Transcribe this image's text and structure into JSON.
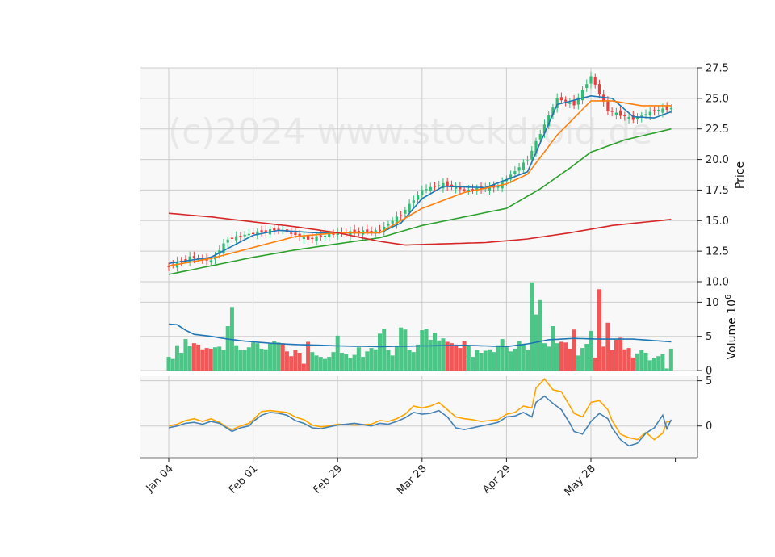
{
  "watermark": "(c)2024 www.stockdroid.de",
  "colors": {
    "up": "#2ebd72",
    "down": "#f23a3a",
    "ma1": "#1f77b4",
    "ma2": "#ff7f0e",
    "ma3": "#2ca02c",
    "ma4": "#d62728",
    "vol_ma": "#1f77b4",
    "osc1": "#4682b4",
    "osc2": "#ffa500",
    "panel_bg": "#f8f8f8",
    "grid": "#cccccc"
  },
  "chart_data": {
    "type": "candlestick",
    "x_tick_labels": [
      "Jan 04",
      "Feb 01",
      "Feb 29",
      "Mar 28",
      "Apr 29",
      "May 28"
    ],
    "x_tick_index": [
      0,
      20,
      40,
      60,
      80,
      100
    ],
    "n_bars": 120,
    "price_panel": {
      "ylabel": "Price",
      "ylim": [
        10.0,
        27.5
      ],
      "yticks": [
        "10.0",
        "12.5",
        "15.0",
        "17.5",
        "20.0",
        "22.5",
        "25.0",
        "27.5"
      ],
      "ytick_values": [
        10.0,
        12.5,
        15.0,
        17.5,
        20.0,
        22.5,
        25.0,
        27.5
      ],
      "close_anchors": [
        [
          0,
          11.3
        ],
        [
          5,
          12.0
        ],
        [
          10,
          11.7
        ],
        [
          14,
          13.5
        ],
        [
          20,
          14.0
        ],
        [
          26,
          14.3
        ],
        [
          33,
          13.5
        ],
        [
          40,
          14.0
        ],
        [
          50,
          14.2
        ],
        [
          55,
          15.5
        ],
        [
          60,
          17.5
        ],
        [
          65,
          18.0
        ],
        [
          70,
          17.5
        ],
        [
          78,
          17.8
        ],
        [
          85,
          20.0
        ],
        [
          92,
          25.0
        ],
        [
          96,
          24.5
        ],
        [
          100,
          26.8
        ],
        [
          104,
          24.0
        ],
        [
          110,
          23.3
        ],
        [
          115,
          24.0
        ],
        [
          119,
          24.2
        ]
      ],
      "ma_anchors": {
        "ma1": [
          [
            0,
            11.5
          ],
          [
            10,
            12.0
          ],
          [
            20,
            13.8
          ],
          [
            26,
            14.2
          ],
          [
            35,
            14.0
          ],
          [
            50,
            14.0
          ],
          [
            55,
            14.8
          ],
          [
            60,
            16.8
          ],
          [
            65,
            17.8
          ],
          [
            75,
            17.7
          ],
          [
            85,
            19.0
          ],
          [
            92,
            24.5
          ],
          [
            100,
            25.2
          ],
          [
            105,
            25.0
          ],
          [
            110,
            23.5
          ],
          [
            115,
            23.4
          ],
          [
            119,
            23.9
          ]
        ],
        "ma2": [
          [
            0,
            11.3
          ],
          [
            10,
            11.9
          ],
          [
            20,
            12.8
          ],
          [
            30,
            13.7
          ],
          [
            40,
            14.0
          ],
          [
            50,
            14.0
          ],
          [
            60,
            16.0
          ],
          [
            70,
            17.3
          ],
          [
            80,
            18.0
          ],
          [
            85,
            18.8
          ],
          [
            92,
            22.0
          ],
          [
            100,
            24.8
          ],
          [
            105,
            24.8
          ],
          [
            112,
            24.4
          ],
          [
            119,
            24.4
          ]
        ],
        "ma3": [
          [
            0,
            10.6
          ],
          [
            10,
            11.3
          ],
          [
            20,
            12.0
          ],
          [
            30,
            12.6
          ],
          [
            40,
            13.1
          ],
          [
            50,
            13.6
          ],
          [
            60,
            14.6
          ],
          [
            70,
            15.3
          ],
          [
            80,
            16.0
          ],
          [
            88,
            17.6
          ],
          [
            95,
            19.3
          ],
          [
            100,
            20.6
          ],
          [
            108,
            21.6
          ],
          [
            119,
            22.5
          ]
        ],
        "ma4": [
          [
            0,
            15.6
          ],
          [
            10,
            15.3
          ],
          [
            20,
            14.9
          ],
          [
            30,
            14.5
          ],
          [
            40,
            14.0
          ],
          [
            50,
            13.3
          ],
          [
            56,
            13.0
          ],
          [
            65,
            13.1
          ],
          [
            75,
            13.2
          ],
          [
            85,
            13.5
          ],
          [
            95,
            14.0
          ],
          [
            105,
            14.6
          ],
          [
            119,
            15.1
          ]
        ]
      }
    },
    "volume_panel": {
      "ylabel": "Volume  10^6",
      "ylim": [
        0,
        13
      ],
      "yticks": [
        "0",
        "5",
        "10"
      ],
      "ytick_values": [
        0,
        5,
        10
      ],
      "volumes": [
        2.0,
        1.7,
        3.7,
        2.6,
        4.6,
        3.6,
        4.0,
        3.8,
        3.1,
        3.3,
        3.2,
        3.4,
        3.5,
        3.0,
        6.5,
        9.3,
        3.7,
        3.0,
        3.0,
        3.4,
        4.1,
        4.0,
        3.2,
        3.1,
        3.9,
        4.3,
        4.1,
        4.0,
        2.8,
        2.1,
        3.0,
        2.6,
        1.0,
        4.2,
        2.7,
        2.2,
        2.0,
        1.7,
        2.0,
        2.7,
        5.1,
        2.6,
        2.4,
        1.8,
        2.3,
        3.4,
        2.0,
        2.8,
        3.3,
        3.1,
        5.4,
        6.1,
        3.0,
        2.2,
        3.5,
        6.3,
        6.0,
        3.0,
        2.7,
        3.8,
        5.9,
        6.1,
        4.5,
        5.5,
        4.4,
        4.7,
        4.2,
        4.0,
        3.8,
        3.3,
        4.3,
        3.7,
        2.0,
        3.0,
        2.6,
        2.9,
        3.1,
        2.7,
        3.7,
        4.6,
        3.4,
        2.8,
        3.2,
        4.3,
        3.8,
        3.0,
        12.9,
        8.2,
        10.3,
        4.0,
        3.5,
        6.5,
        4.0,
        4.2,
        4.1,
        3.2,
        6.0,
        2.2,
        3.3,
        3.9,
        5.8,
        1.9,
        11.9,
        3.5,
        7.0,
        3.0,
        4.5,
        4.8,
        3.1,
        3.3,
        1.9,
        2.5,
        3.0,
        2.6,
        1.5,
        1.8,
        2.1,
        2.4,
        0.3,
        3.2
      ],
      "vol_ma_anchors": [
        [
          0,
          6.8
        ],
        [
          2,
          6.7
        ],
        [
          4,
          5.9
        ],
        [
          6,
          5.3
        ],
        [
          10,
          5.0
        ],
        [
          14,
          4.6
        ],
        [
          18,
          4.3
        ],
        [
          24,
          4.0
        ],
        [
          30,
          3.8
        ],
        [
          36,
          3.7
        ],
        [
          40,
          3.6
        ],
        [
          50,
          3.5
        ],
        [
          60,
          3.6
        ],
        [
          70,
          3.7
        ],
        [
          80,
          3.5
        ],
        [
          85,
          3.9
        ],
        [
          90,
          4.5
        ],
        [
          96,
          4.7
        ],
        [
          102,
          4.6
        ],
        [
          110,
          4.6
        ],
        [
          119,
          4.2
        ]
      ]
    },
    "oscillator_panel": {
      "ylim": [
        -3.5,
        5.5
      ],
      "yticks": [
        "0",
        "5"
      ],
      "ytick_values": [
        0,
        5
      ],
      "osc1_anchors": [
        [
          0,
          -0.2
        ],
        [
          2,
          0.0
        ],
        [
          4,
          0.3
        ],
        [
          6,
          0.4
        ],
        [
          8,
          0.2
        ],
        [
          10,
          0.5
        ],
        [
          12,
          0.3
        ],
        [
          14,
          -0.3
        ],
        [
          15,
          -0.6
        ],
        [
          17,
          -0.2
        ],
        [
          19,
          0.0
        ],
        [
          20,
          0.5
        ],
        [
          22,
          1.2
        ],
        [
          24,
          1.5
        ],
        [
          26,
          1.4
        ],
        [
          28,
          1.2
        ],
        [
          30,
          0.6
        ],
        [
          32,
          0.3
        ],
        [
          34,
          -0.2
        ],
        [
          36,
          -0.3
        ],
        [
          38,
          -0.1
        ],
        [
          40,
          0.1
        ],
        [
          44,
          0.3
        ],
        [
          48,
          0.0
        ],
        [
          50,
          0.3
        ],
        [
          52,
          0.2
        ],
        [
          54,
          0.5
        ],
        [
          56,
          0.9
        ],
        [
          58,
          1.5
        ],
        [
          60,
          1.3
        ],
        [
          62,
          1.4
        ],
        [
          64,
          1.7
        ],
        [
          66,
          1.0
        ],
        [
          68,
          -0.2
        ],
        [
          70,
          -0.4
        ],
        [
          72,
          -0.2
        ],
        [
          74,
          0.0
        ],
        [
          76,
          0.2
        ],
        [
          78,
          0.4
        ],
        [
          80,
          1.0
        ],
        [
          82,
          1.1
        ],
        [
          84,
          1.5
        ],
        [
          86,
          1.0
        ],
        [
          87,
          2.6
        ],
        [
          89,
          3.3
        ],
        [
          91,
          2.5
        ],
        [
          93,
          1.8
        ],
        [
          95,
          0.3
        ],
        [
          96,
          -0.6
        ],
        [
          98,
          -0.9
        ],
        [
          100,
          0.5
        ],
        [
          102,
          1.4
        ],
        [
          104,
          0.8
        ],
        [
          105,
          -0.2
        ],
        [
          107,
          -1.5
        ],
        [
          109,
          -2.2
        ],
        [
          111,
          -1.9
        ],
        [
          113,
          -0.8
        ],
        [
          115,
          -0.2
        ],
        [
          117,
          1.2
        ],
        [
          118,
          -0.3
        ],
        [
          119,
          0.7
        ]
      ],
      "osc2_anchors": [
        [
          0,
          0.0
        ],
        [
          2,
          0.2
        ],
        [
          4,
          0.6
        ],
        [
          6,
          0.8
        ],
        [
          8,
          0.5
        ],
        [
          10,
          0.8
        ],
        [
          12,
          0.4
        ],
        [
          14,
          -0.2
        ],
        [
          15,
          -0.4
        ],
        [
          17,
          0.0
        ],
        [
          19,
          0.3
        ],
        [
          20,
          0.7
        ],
        [
          22,
          1.6
        ],
        [
          24,
          1.7
        ],
        [
          26,
          1.6
        ],
        [
          28,
          1.5
        ],
        [
          30,
          1.0
        ],
        [
          32,
          0.7
        ],
        [
          34,
          0.1
        ],
        [
          36,
          -0.1
        ],
        [
          38,
          0.0
        ],
        [
          40,
          0.2
        ],
        [
          44,
          0.1
        ],
        [
          48,
          0.2
        ],
        [
          50,
          0.6
        ],
        [
          52,
          0.5
        ],
        [
          54,
          0.8
        ],
        [
          56,
          1.3
        ],
        [
          58,
          2.2
        ],
        [
          60,
          2.0
        ],
        [
          62,
          2.2
        ],
        [
          64,
          2.6
        ],
        [
          66,
          1.8
        ],
        [
          68,
          1.0
        ],
        [
          70,
          0.8
        ],
        [
          72,
          0.7
        ],
        [
          74,
          0.5
        ],
        [
          76,
          0.6
        ],
        [
          78,
          0.7
        ],
        [
          80,
          1.3
        ],
        [
          82,
          1.5
        ],
        [
          84,
          2.2
        ],
        [
          86,
          2.0
        ],
        [
          87,
          4.2
        ],
        [
          89,
          5.2
        ],
        [
          91,
          4.0
        ],
        [
          93,
          3.8
        ],
        [
          95,
          2.2
        ],
        [
          96,
          1.4
        ],
        [
          98,
          1.0
        ],
        [
          100,
          2.6
        ],
        [
          102,
          2.8
        ],
        [
          104,
          1.8
        ],
        [
          105,
          0.6
        ],
        [
          107,
          -0.9
        ],
        [
          109,
          -1.3
        ],
        [
          111,
          -1.5
        ],
        [
          113,
          -0.7
        ],
        [
          115,
          -1.5
        ],
        [
          117,
          -0.8
        ],
        [
          118,
          0.5
        ],
        [
          119,
          0.5
        ]
      ]
    }
  }
}
